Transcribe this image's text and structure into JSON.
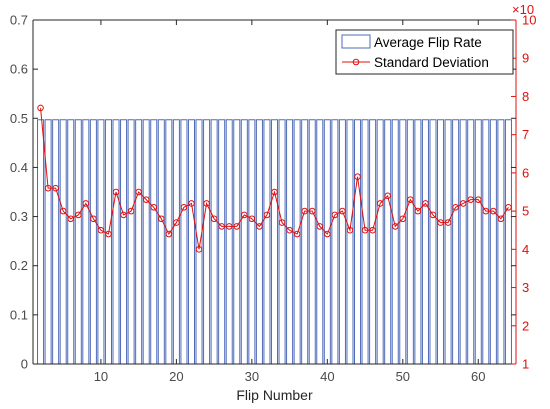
{
  "chart_data": {
    "type": "bar",
    "xlabel": "Flip Number",
    "ylabel": "",
    "x": [
      2,
      3,
      4,
      5,
      6,
      7,
      8,
      9,
      10,
      11,
      12,
      13,
      14,
      15,
      16,
      17,
      18,
      19,
      20,
      21,
      22,
      23,
      24,
      25,
      26,
      27,
      28,
      29,
      30,
      31,
      32,
      33,
      34,
      35,
      36,
      37,
      38,
      39,
      40,
      41,
      42,
      43,
      44,
      45,
      46,
      47,
      48,
      49,
      50,
      51,
      52,
      53,
      54,
      55,
      56,
      57,
      58,
      59,
      60,
      61,
      62,
      63,
      64
    ],
    "xlim": [
      1,
      65
    ],
    "xticks": [
      10,
      20,
      30,
      40,
      50,
      60
    ],
    "left_axis": {
      "ylim": [
        0,
        0.7
      ],
      "ticks": [
        0,
        0.1,
        0.2,
        0.3,
        0.4,
        0.5,
        0.6,
        0.7
      ],
      "tick_labels": [
        "0",
        "0.1",
        "0.2",
        "0.3",
        "0.4",
        "0.5",
        "0.6",
        "0.7"
      ],
      "color": "#000000"
    },
    "right_axis": {
      "ylim": [
        1,
        10
      ],
      "ticks": [
        1,
        2,
        3,
        4,
        5,
        6,
        7,
        8,
        9,
        10
      ],
      "tick_labels": [
        "1",
        "2",
        "3",
        "4",
        "5",
        "6",
        "7",
        "8",
        "9",
        "10"
      ],
      "exponent_label": "×10",
      "color": "#e01010"
    },
    "series": [
      {
        "name": "Average Flip Rate",
        "kind": "bar",
        "axis": "left",
        "color": "#4f6bb8",
        "values": [
          0.497,
          0.497,
          0.497,
          0.497,
          0.497,
          0.497,
          0.497,
          0.497,
          0.497,
          0.497,
          0.497,
          0.497,
          0.497,
          0.497,
          0.497,
          0.497,
          0.497,
          0.497,
          0.497,
          0.497,
          0.497,
          0.497,
          0.497,
          0.497,
          0.497,
          0.497,
          0.497,
          0.497,
          0.497,
          0.497,
          0.497,
          0.497,
          0.497,
          0.497,
          0.497,
          0.497,
          0.497,
          0.497,
          0.497,
          0.497,
          0.497,
          0.497,
          0.497,
          0.497,
          0.497,
          0.497,
          0.497,
          0.497,
          0.497,
          0.497,
          0.497,
          0.497,
          0.497,
          0.497,
          0.497,
          0.497,
          0.497,
          0.497,
          0.497,
          0.497,
          0.497,
          0.497,
          0.497
        ]
      },
      {
        "name": "Standard Deviation",
        "kind": "line",
        "axis": "right",
        "color": "#e01010",
        "marker": "circle",
        "values": [
          7.7,
          5.6,
          5.6,
          5.0,
          4.8,
          4.9,
          5.2,
          4.8,
          4.5,
          4.4,
          5.5,
          4.9,
          5.0,
          5.5,
          5.3,
          5.1,
          4.8,
          4.4,
          4.7,
          5.1,
          5.2,
          4.0,
          5.2,
          4.8,
          4.6,
          4.6,
          4.6,
          4.9,
          4.8,
          4.6,
          4.9,
          5.5,
          4.7,
          4.5,
          4.4,
          5.0,
          5.0,
          4.6,
          4.4,
          4.9,
          5.0,
          4.5,
          5.9,
          4.5,
          4.5,
          5.2,
          5.4,
          4.6,
          4.8,
          5.3,
          5.0,
          5.2,
          4.9,
          4.7,
          4.7,
          5.1,
          5.2,
          5.3,
          5.3,
          5.0,
          5.0,
          4.8,
          5.1
        ]
      }
    ],
    "legend": {
      "position": "top-right",
      "entries": [
        "Average Flip Rate",
        "Standard Deviation"
      ]
    },
    "grid": false
  }
}
